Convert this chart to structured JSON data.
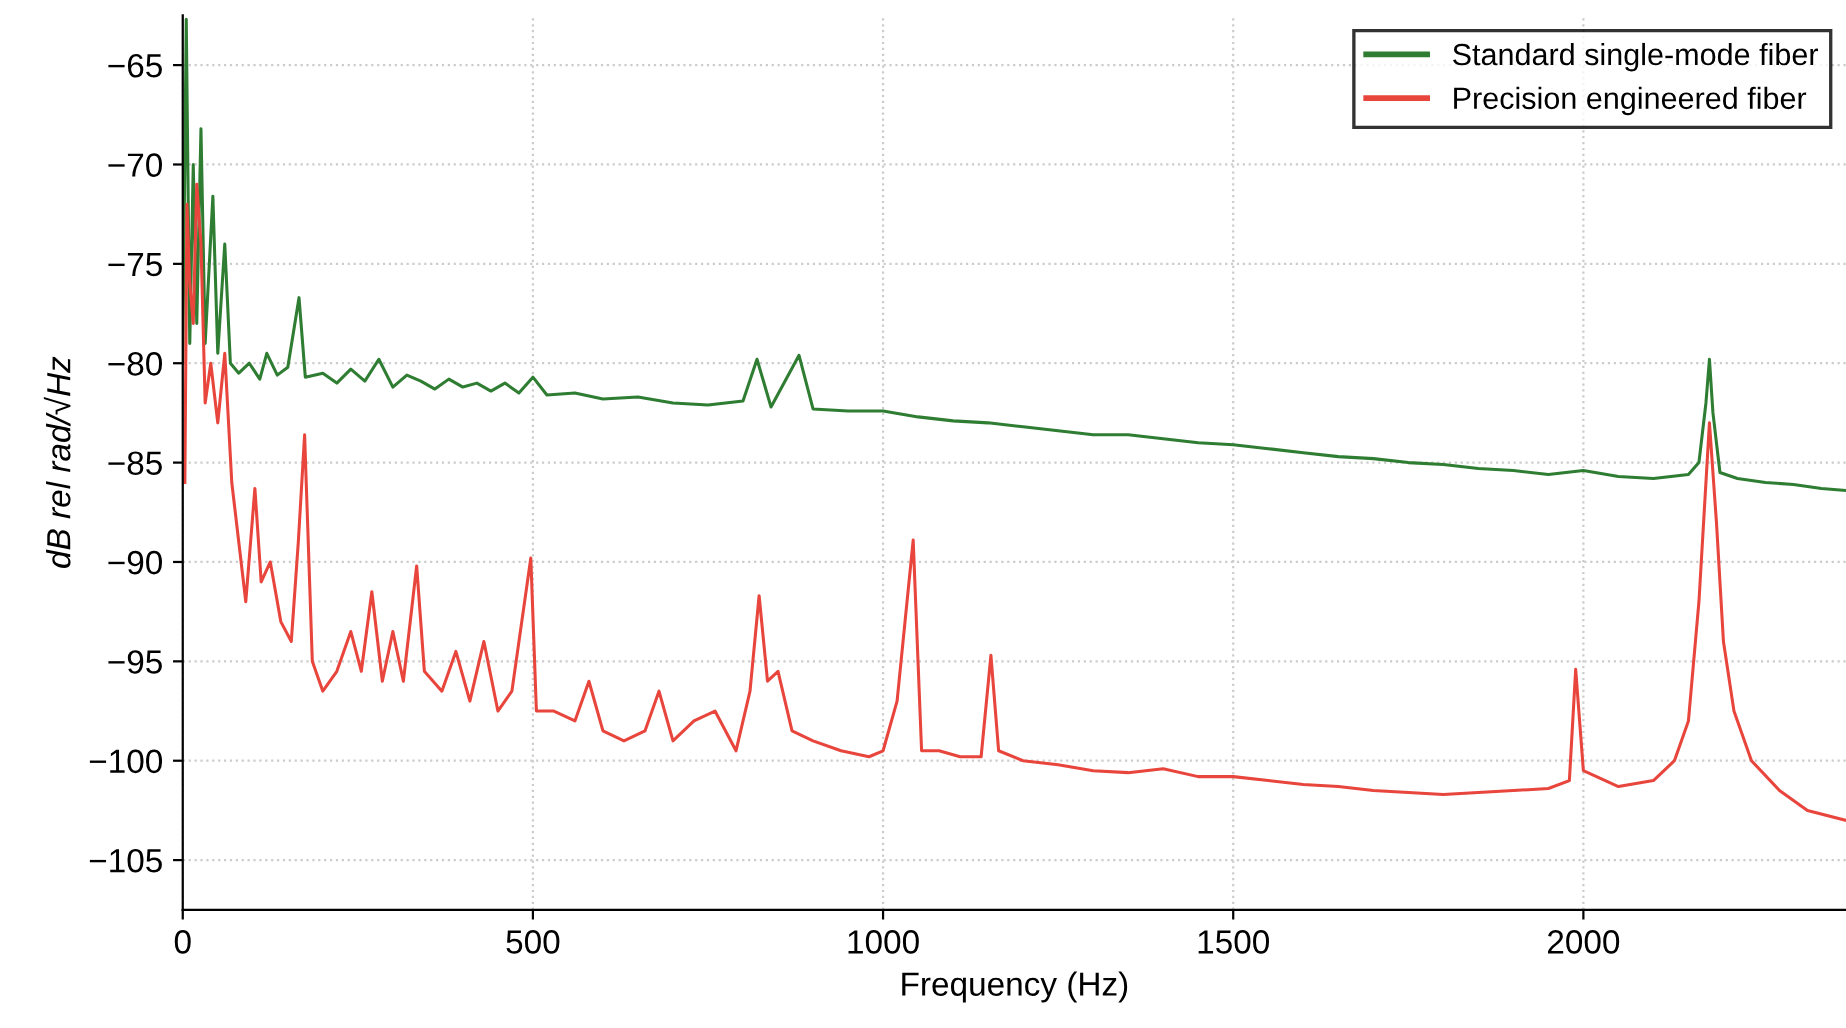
{
  "chart_data": {
    "type": "line",
    "xlabel": "Frequency (Hz)",
    "ylabel": "dB rel rad/√Hz",
    "xlim": [
      0,
      2375
    ],
    "ylim": [
      -107.5,
      -62.5
    ],
    "xticks": [
      0,
      500,
      1000,
      1500,
      2000
    ],
    "yticks": [
      -105,
      -100,
      -95,
      -90,
      -85,
      -80,
      -75,
      -70,
      -65
    ],
    "grid": true,
    "legend": "top right",
    "marker": "none",
    "line_style": "solid",
    "series": [
      {
        "name": "Standard single-mode fiber",
        "color": "#2e7d32",
        "x": [
          0,
          5,
          10,
          15,
          20,
          26,
          32,
          43,
          50,
          60,
          68,
          80,
          95,
          110,
          120,
          135,
          150,
          166,
          175,
          200,
          220,
          240,
          260,
          280,
          300,
          320,
          340,
          360,
          380,
          400,
          420,
          440,
          460,
          480,
          500,
          520,
          560,
          600,
          650,
          700,
          750,
          800,
          820,
          840,
          880,
          900,
          950,
          1000,
          1050,
          1100,
          1150,
          1200,
          1250,
          1300,
          1350,
          1400,
          1450,
          1500,
          1550,
          1600,
          1650,
          1700,
          1750,
          1800,
          1850,
          1900,
          1950,
          2000,
          2050,
          2100,
          2150,
          2165,
          2175,
          2180,
          2185,
          2195,
          2220,
          2260,
          2300,
          2340,
          2375
        ],
        "values": [
          -80,
          -62.7,
          -79,
          -70,
          -78,
          -68.2,
          -79,
          -71.6,
          -79.5,
          -74,
          -80,
          -80.5,
          -80,
          -80.8,
          -79.5,
          -80.6,
          -80.2,
          -76.7,
          -80.7,
          -80.5,
          -81,
          -80.3,
          -80.9,
          -79.8,
          -81.2,
          -80.6,
          -80.9,
          -81.3,
          -80.8,
          -81.2,
          -81,
          -81.4,
          -81,
          -81.5,
          -80.7,
          -81.6,
          -81.5,
          -81.8,
          -81.7,
          -82,
          -82.1,
          -81.9,
          -79.8,
          -82.2,
          -79.6,
          -82.3,
          -82.4,
          -82.4,
          -82.7,
          -82.9,
          -83,
          -83.2,
          -83.4,
          -83.6,
          -83.6,
          -83.8,
          -84,
          -84.1,
          -84.3,
          -84.5,
          -84.7,
          -84.8,
          -85,
          -85.1,
          -85.3,
          -85.4,
          -85.6,
          -85.4,
          -85.7,
          -85.8,
          -85.6,
          -85,
          -82,
          -79.8,
          -82.5,
          -85.5,
          -85.8,
          -86,
          -86.1,
          -86.3,
          -86.4
        ]
      },
      {
        "name": "Precision engineered fiber",
        "color": "#e8453c",
        "x": [
          3,
          6,
          10,
          15,
          20,
          26,
          32,
          40,
          50,
          60,
          70,
          80,
          90,
          103,
          112,
          125,
          140,
          155,
          165,
          174,
          185,
          200,
          220,
          240,
          255,
          270,
          285,
          300,
          315,
          334,
          345,
          370,
          390,
          410,
          430,
          450,
          470,
          497,
          505,
          530,
          560,
          580,
          600,
          630,
          660,
          680,
          700,
          730,
          760,
          790,
          810,
          823,
          835,
          850,
          870,
          900,
          940,
          980,
          1000,
          1020,
          1043,
          1055,
          1080,
          1110,
          1140,
          1154,
          1165,
          1200,
          1250,
          1300,
          1350,
          1400,
          1450,
          1500,
          1550,
          1600,
          1650,
          1700,
          1750,
          1800,
          1850,
          1900,
          1950,
          1980,
          1989,
          2000,
          2050,
          2100,
          2130,
          2150,
          2165,
          2175,
          2180,
          2190,
          2200,
          2215,
          2240,
          2280,
          2320,
          2375
        ],
        "values": [
          -86,
          -72,
          -76,
          -78,
          -71,
          -74,
          -82,
          -80,
          -83,
          -79.5,
          -86,
          -89,
          -92,
          -86.3,
          -91,
          -90,
          -93,
          -94,
          -89,
          -83.6,
          -95,
          -96.5,
          -95.5,
          -93.5,
          -95.5,
          -91.5,
          -96,
          -93.5,
          -96,
          -90.2,
          -95.5,
          -96.5,
          -94.5,
          -97,
          -94,
          -97.5,
          -96.5,
          -89.8,
          -97.5,
          -97.5,
          -98,
          -96,
          -98.5,
          -99,
          -98.5,
          -96.5,
          -99,
          -98,
          -97.5,
          -99.5,
          -96.5,
          -91.7,
          -96,
          -95.5,
          -98.5,
          -99,
          -99.5,
          -99.8,
          -99.5,
          -97,
          -88.9,
          -99.5,
          -99.5,
          -99.8,
          -99.8,
          -94.7,
          -99.5,
          -100,
          -100.2,
          -100.5,
          -100.6,
          -100.4,
          -100.8,
          -100.8,
          -101,
          -101.2,
          -101.3,
          -101.5,
          -101.6,
          -101.7,
          -101.6,
          -101.5,
          -101.4,
          -101,
          -95.4,
          -100.5,
          -101.3,
          -101,
          -100,
          -98,
          -92,
          -86,
          -83,
          -88,
          -94,
          -97.5,
          -100,
          -101.5,
          -102.5,
          -103
        ]
      }
    ]
  }
}
